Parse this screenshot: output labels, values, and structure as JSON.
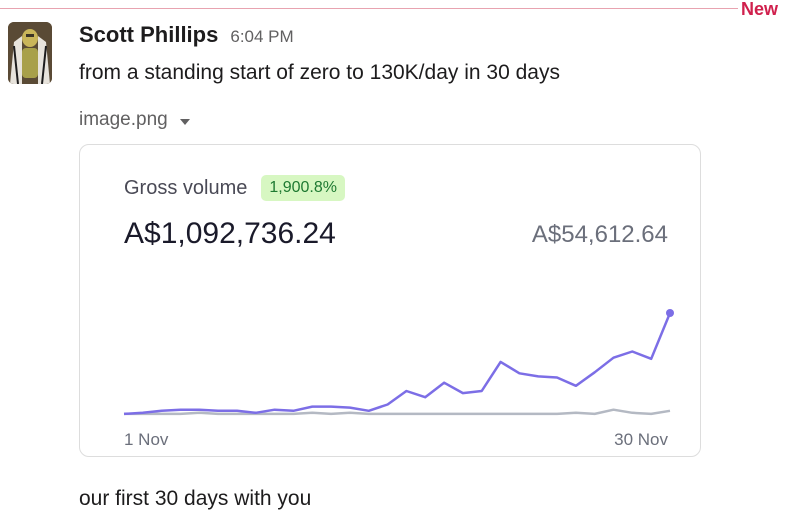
{
  "divider": {
    "label": "New"
  },
  "message": {
    "sender": "Scott Phillips",
    "time": "6:04 PM",
    "text": "from a standing start of zero to 130K/day in 30 days",
    "file": {
      "name": "image.png"
    },
    "followup": "our first 30 days with you"
  },
  "chart_card": {
    "metric_label": "Gross volume",
    "change_badge": "1,900.8%",
    "amount": "A$1,092,736.24",
    "compare_amount": "A$54,612.64",
    "x_start": "1 Nov",
    "x_end": "30 Nov"
  },
  "colors": {
    "current_series": "#7c6ee6",
    "previous_series": "#b4b9c3",
    "badge_bg": "#d7f7c2",
    "badge_text": "#1f7a32",
    "new_label": "#d0204d"
  },
  "chart_data": {
    "type": "line",
    "x": [
      "1 Nov",
      "2 Nov",
      "3 Nov",
      "4 Nov",
      "5 Nov",
      "6 Nov",
      "7 Nov",
      "8 Nov",
      "9 Nov",
      "10 Nov",
      "11 Nov",
      "12 Nov",
      "13 Nov",
      "14 Nov",
      "15 Nov",
      "16 Nov",
      "17 Nov",
      "18 Nov",
      "19 Nov",
      "20 Nov",
      "21 Nov",
      "22 Nov",
      "23 Nov",
      "24 Nov",
      "25 Nov",
      "26 Nov",
      "27 Nov",
      "28 Nov",
      "29 Nov",
      "30 Nov"
    ],
    "series": [
      {
        "values": [
          3,
          4,
          6,
          7,
          7,
          6,
          6,
          4,
          7,
          6,
          10,
          10,
          9,
          6,
          12,
          25,
          19,
          33,
          23,
          25,
          53,
          42,
          39,
          38,
          30,
          43,
          57,
          63,
          56,
          100
        ]
      },
      {
        "values": [
          3,
          3,
          3,
          3,
          4,
          3,
          3,
          3,
          3,
          3,
          4,
          3,
          4,
          3,
          3,
          3,
          3,
          3,
          3,
          3,
          3,
          3,
          3,
          3,
          4,
          3,
          7,
          4,
          3,
          6
        ]
      }
    ],
    "xlabel": "",
    "ylabel": ""
  }
}
